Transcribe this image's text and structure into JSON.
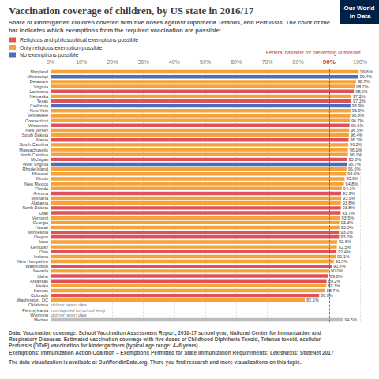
{
  "chart_data": {
    "type": "bar",
    "orientation": "horizontal",
    "title": "Vaccination coverage of children, by US state in 2016/17",
    "subtitle": "Share of kindergarten children covered with five doses against Diphtheria Tetanus, and Pertussis. The color of the bar indicates which exemptions from the required vaccination are possible:",
    "logo": "Our World in Data",
    "categories": [
      "Maryland",
      "Mississippi",
      "Delaware",
      "Virginia",
      "Louisiana",
      "Nebraska",
      "Texas",
      "California",
      "New York",
      "Tennessee",
      "Connecticut",
      "Wisconsin",
      "New Jersey",
      "South Dakota",
      "Maine",
      "South Carolina",
      "Massachusetts",
      "North Carolina",
      "Michigan",
      "West Virginia",
      "Rhode Island",
      "Missouri",
      "Illinois",
      "New Mexico",
      "Florida",
      "Arizona",
      "Montana",
      "Alabama",
      "North Dakota",
      "Utah",
      "Vermont",
      "Georgia",
      "Hawaii",
      "Minnesota",
      "Oregon",
      "Iowa",
      "Kentucky",
      "Ohio",
      "Indiana",
      "New Hampshire",
      "Washington",
      "Nevada",
      "Idaho",
      "Arkansas",
      "Alaska",
      "Kansas",
      "Colorado",
      "Washington, DC",
      "Oklahoma",
      "Pennsylvania",
      "Wyoming",
      "Median"
    ],
    "series": [
      {
        "name": "Religious and philosophical exemptions possible",
        "color": "#e0525a",
        "values": [
          null,
          null,
          null,
          null,
          98.0,
          null,
          97.2,
          null,
          null,
          null,
          null,
          96.6,
          null,
          null,
          96.3,
          null,
          null,
          null,
          95.8,
          null,
          null,
          null,
          null,
          null,
          null,
          93.9,
          null,
          null,
          93.8,
          93.7,
          null,
          null,
          null,
          93.2,
          93.2,
          null,
          null,
          92.4,
          null,
          null,
          90.8,
          null,
          89.8,
          89.2,
          null,
          null,
          86.8,
          null,
          null,
          null,
          null,
          null
        ],
        "value_labels": [
          null,
          null,
          null,
          null,
          "98.0%",
          null,
          "97.2%",
          null,
          null,
          null,
          null,
          "96.6%",
          null,
          null,
          "96.3%",
          null,
          null,
          null,
          "95.8%",
          null,
          null,
          null,
          null,
          null,
          null,
          "93.9%",
          null,
          null,
          "93.8%",
          "93.7%",
          null,
          null,
          null,
          "93.2%",
          "93.2%",
          null,
          null,
          "92.4%",
          null,
          null,
          "90.8%",
          null,
          "89.8%",
          "89.2%",
          null,
          null,
          "86.8%",
          null,
          null,
          null,
          null,
          null
        ]
      },
      {
        "name": "Only religious exemption possible",
        "color": "#f5a23a",
        "values": [
          99.6,
          null,
          98.7,
          98.2,
          null,
          97.2,
          null,
          null,
          96.9,
          96.8,
          96.7,
          null,
          96.5,
          96.4,
          null,
          96.2,
          96.1,
          96.1,
          null,
          null,
          95.6,
          95.5,
          95.0,
          94.8,
          94.1,
          null,
          93.9,
          93.8,
          null,
          null,
          93.5,
          93.3,
          93.3,
          null,
          null,
          92.6,
          92.5,
          null,
          92.1,
          91.5,
          null,
          90.0,
          null,
          null,
          89.1,
          88.7,
          null,
          82.2,
          null,
          null,
          null,
          null
        ],
        "value_labels": [
          "99.6%",
          null,
          "98.7%",
          "98.2%",
          null,
          "97.2%",
          null,
          null,
          "96.9%",
          "96.8%",
          "96.7%",
          null,
          "96.5%",
          "96.4%",
          null,
          "96.2%",
          "96.1%",
          "96.1%",
          null,
          null,
          "95.6%",
          "95.5%",
          "95.0%",
          "94.8%",
          "94.1%",
          null,
          "93.9%",
          "93.8%",
          null,
          null,
          "93.5%",
          "93.3%",
          "93.3%",
          null,
          null,
          "92.6%",
          "92.5%",
          null,
          "92.1%",
          "91.5%",
          null,
          "90.0%",
          null,
          null,
          "89.1%",
          "88.7%",
          null,
          "82.2%",
          null,
          null,
          null,
          null
        ]
      },
      {
        "name": "No exemptions possible",
        "color": "#4a6fb5",
        "values": [
          null,
          99.4,
          null,
          null,
          null,
          null,
          null,
          96.9,
          null,
          null,
          null,
          null,
          null,
          null,
          null,
          null,
          null,
          null,
          null,
          95.7,
          null,
          null,
          null,
          null,
          null,
          null,
          null,
          null,
          null,
          null,
          null,
          null,
          null,
          null,
          null,
          null,
          null,
          null,
          null,
          null,
          null,
          null,
          null,
          null,
          null,
          null,
          null,
          null,
          null,
          null,
          null,
          null
        ],
        "value_labels": [
          null,
          "99.4%",
          null,
          null,
          null,
          null,
          null,
          "96.9%",
          null,
          null,
          null,
          null,
          null,
          null,
          null,
          null,
          null,
          null,
          null,
          "95.7%",
          null,
          null,
          null,
          null,
          null,
          null,
          null,
          null,
          null,
          null,
          null,
          null,
          null,
          null,
          null,
          null,
          null,
          null,
          null,
          null,
          null,
          null,
          null,
          null,
          null,
          null,
          null,
          null,
          null,
          null,
          null,
          null
        ]
      },
      {
        "color": "#bdbdbd",
        "values": [
          null,
          null,
          null,
          null,
          null,
          null,
          null,
          null,
          null,
          null,
          null,
          null,
          null,
          null,
          null,
          null,
          null,
          null,
          null,
          null,
          null,
          null,
          null,
          null,
          null,
          null,
          null,
          null,
          null,
          null,
          null,
          null,
          null,
          null,
          null,
          null,
          null,
          null,
          null,
          null,
          null,
          null,
          null,
          null,
          null,
          null,
          null,
          null,
          null,
          null,
          null,
          94.5
        ],
        "value_labels": [
          null,
          null,
          null,
          null,
          null,
          null,
          null,
          null,
          null,
          null,
          null,
          null,
          null,
          null,
          null,
          null,
          null,
          null,
          null,
          null,
          null,
          null,
          null,
          null,
          null,
          null,
          null,
          null,
          null,
          null,
          null,
          null,
          null,
          null,
          null,
          null,
          null,
          null,
          null,
          null,
          null,
          null,
          null,
          null,
          null,
          null,
          null,
          null,
          null,
          null,
          null,
          "94.5%"
        ]
      }
    ],
    "annotations": [
      {
        "category": "Oklahoma",
        "text": "did not report data"
      },
      {
        "category": "Pennsylvania",
        "text": "not required for school entry"
      },
      {
        "category": "Wyoming",
        "text": "did not report data"
      }
    ],
    "reference_line": {
      "value": 90,
      "label": "90%",
      "text": "Federal baseline for preventing outbreaks"
    },
    "xlim": [
      0,
      100
    ],
    "xticks": [
      {
        "value": 0,
        "label": "0%"
      },
      {
        "value": 10,
        "label": "10%"
      },
      {
        "value": 20,
        "label": "20%"
      },
      {
        "value": 30,
        "label": "30%"
      },
      {
        "value": 40,
        "label": "40%"
      },
      {
        "value": 50,
        "label": "50%"
      },
      {
        "value": 60,
        "label": "60%"
      },
      {
        "value": 70,
        "label": "70%"
      },
      {
        "value": 80,
        "label": "80%"
      },
      {
        "value": 90,
        "label": "90%"
      },
      {
        "value": 100,
        "label": "100%"
      }
    ],
    "grid": true,
    "data_labels": true,
    "legend": "top-left",
    "source": "Data: Vaccination coverage: School Vaccination Assessment Report, 2016-17 school year; National Center for Immunization and Respiratory Diseases. Estimated vaccination coverage with five doses of Childhood Diphtheria Toxoid, Tetanus toxoid, acellular Pertussis (DTaP) vaccination for kindergartners (typical age range: 4–6 years).",
    "exemptions_source": "Exemptions: Immunization Action Coalition – Exemptions Permitted for State Immunization Requirements; LexisNexis; StateNet 2017",
    "footer": "The data visualization is available at OurWorldinData.org. There you find research and more visualizations on this topic."
  }
}
